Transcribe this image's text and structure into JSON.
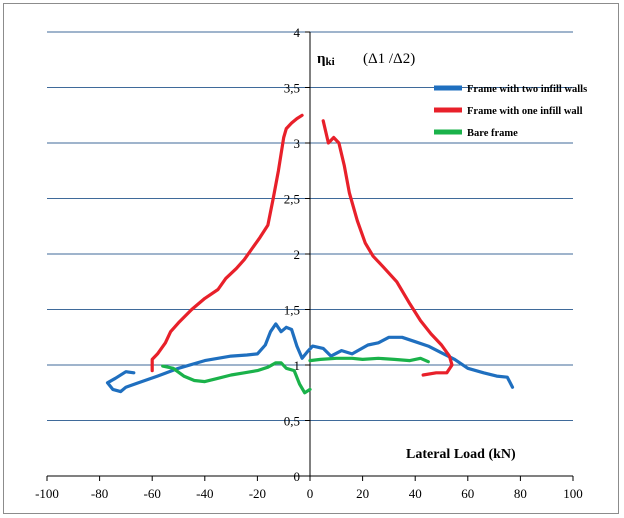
{
  "chart_data": {
    "type": "line",
    "title": "",
    "xlabel": "Lateral Load (kN)",
    "ylabel_symbol": "η",
    "ylabel_subscript": "ki",
    "ylabel_ratio": "(Δ1 /Δ2)",
    "xlim": [
      -100,
      100
    ],
    "ylim": [
      0,
      4
    ],
    "x_ticks": [
      -100,
      -80,
      -60,
      -40,
      -20,
      0,
      20,
      40,
      60,
      80,
      100
    ],
    "y_ticks": [
      0,
      0.5,
      1,
      1.5,
      2,
      2.5,
      3,
      3.5,
      4
    ],
    "x_tick_labels": [
      "-100",
      "-80",
      "-60",
      "-40",
      "-20",
      "0",
      "20",
      "40",
      "60",
      "80",
      "100"
    ],
    "y_tick_labels": [
      "0",
      "0,5",
      "1",
      "1,5",
      "2",
      "2,5",
      "3",
      "3,5",
      "4"
    ],
    "grid": "horizontal",
    "legend_position": "top-right",
    "series": [
      {
        "name": "Frame with two infill walls",
        "color": "#1f6fbf",
        "segments": [
          [
            [
              -67,
              0.93
            ],
            [
              -70,
              0.94
            ],
            [
              -74,
              0.88
            ],
            [
              -77,
              0.84
            ],
            [
              -75,
              0.78
            ],
            [
              -72,
              0.76
            ],
            [
              -70,
              0.8
            ],
            [
              -64,
              0.85
            ],
            [
              -58,
              0.9
            ],
            [
              -50,
              0.97
            ],
            [
              -40,
              1.04
            ],
            [
              -30,
              1.08
            ],
            [
              -24,
              1.09
            ],
            [
              -20,
              1.1
            ],
            [
              -17,
              1.18
            ],
            [
              -15,
              1.3
            ],
            [
              -13,
              1.37
            ],
            [
              -11,
              1.3
            ],
            [
              -9,
              1.34
            ],
            [
              -7,
              1.32
            ],
            [
              -5,
              1.17
            ],
            [
              -3,
              1.06
            ],
            [
              -1,
              1.12
            ],
            [
              1,
              1.17
            ],
            [
              5,
              1.15
            ],
            [
              8,
              1.08
            ],
            [
              12,
              1.13
            ],
            [
              16,
              1.1
            ],
            [
              22,
              1.18
            ],
            [
              26,
              1.2
            ],
            [
              30,
              1.25
            ],
            [
              35,
              1.25
            ],
            [
              40,
              1.21
            ],
            [
              45,
              1.17
            ],
            [
              50,
              1.11
            ],
            [
              55,
              1.05
            ],
            [
              60,
              0.97
            ],
            [
              66,
              0.93
            ],
            [
              71,
              0.9
            ],
            [
              75,
              0.89
            ],
            [
              77,
              0.8
            ]
          ]
        ]
      },
      {
        "name": "Frame with one infill wall",
        "color": "#e8202a",
        "segments": [
          [
            [
              -60,
              0.95
            ],
            [
              -60,
              1.05
            ],
            [
              -58,
              1.1
            ],
            [
              -55,
              1.2
            ],
            [
              -53,
              1.3
            ],
            [
              -50,
              1.38
            ],
            [
              -45,
              1.5
            ],
            [
              -40,
              1.6
            ],
            [
              -35,
              1.68
            ],
            [
              -32,
              1.78
            ],
            [
              -28,
              1.87
            ],
            [
              -25,
              1.95
            ],
            [
              -22,
              2.05
            ],
            [
              -19,
              2.15
            ],
            [
              -16,
              2.26
            ],
            [
              -14,
              2.5
            ],
            [
              -12,
              2.75
            ],
            [
              -10,
              3.05
            ],
            [
              -9,
              3.13
            ],
            [
              -7,
              3.18
            ],
            [
              -5,
              3.22
            ],
            [
              -3,
              3.25
            ]
          ],
          [
            [
              5,
              3.2
            ],
            [
              7,
              3.0
            ],
            [
              9,
              3.05
            ],
            [
              11,
              3.0
            ],
            [
              13,
              2.8
            ],
            [
              15,
              2.55
            ],
            [
              18,
              2.3
            ],
            [
              21,
              2.1
            ],
            [
              24,
              1.98
            ],
            [
              28,
              1.88
            ],
            [
              33,
              1.75
            ],
            [
              38,
              1.55
            ],
            [
              42,
              1.4
            ],
            [
              46,
              1.28
            ],
            [
              50,
              1.18
            ],
            [
              53,
              1.08
            ],
            [
              54,
              1.0
            ],
            [
              52,
              0.93
            ],
            [
              48,
              0.93
            ],
            [
              43,
              0.91
            ]
          ]
        ]
      },
      {
        "name": "Bare frame",
        "color": "#1ab24a",
        "segments": [
          [
            [
              -56,
              0.99
            ],
            [
              -52,
              0.97
            ],
            [
              -48,
              0.9
            ],
            [
              -44,
              0.86
            ],
            [
              -40,
              0.85
            ],
            [
              -35,
              0.88
            ],
            [
              -30,
              0.91
            ],
            [
              -25,
              0.93
            ],
            [
              -20,
              0.95
            ],
            [
              -16,
              0.98
            ],
            [
              -13,
              1.02
            ],
            [
              -11,
              1.02
            ],
            [
              -9,
              0.97
            ],
            [
              -6,
              0.95
            ],
            [
              -4,
              0.83
            ],
            [
              -2,
              0.75
            ],
            [
              0,
              0.78
            ]
          ],
          [
            [
              0,
              1.04
            ],
            [
              4,
              1.05
            ],
            [
              10,
              1.06
            ],
            [
              16,
              1.06
            ],
            [
              20,
              1.05
            ],
            [
              26,
              1.06
            ],
            [
              32,
              1.05
            ],
            [
              38,
              1.04
            ],
            [
              42,
              1.06
            ],
            [
              45,
              1.03
            ]
          ]
        ]
      }
    ]
  }
}
